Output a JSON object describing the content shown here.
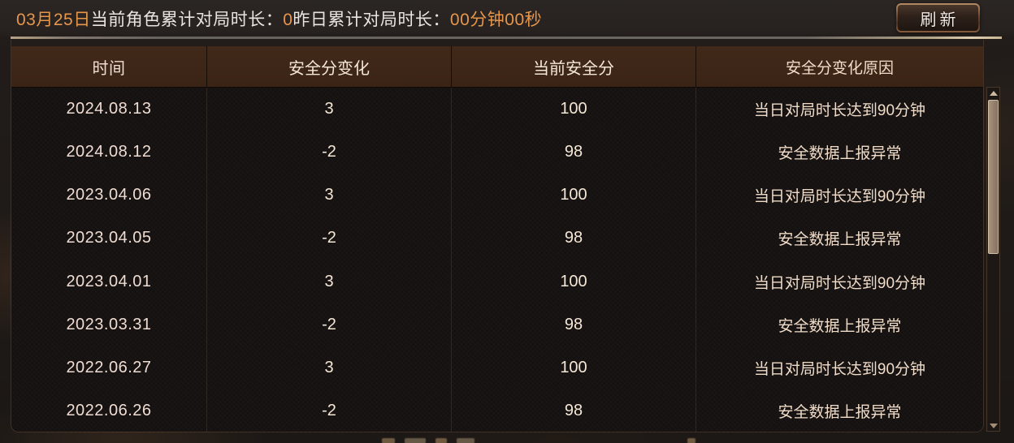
{
  "top_bar": {
    "date": "03月25日",
    "today_label": "当前角色累计对局时长：",
    "today_value": "0",
    "yesterday_label": "昨日累计对局时长：",
    "yesterday_value": "00分钟00秒",
    "refresh_label": "刷新"
  },
  "table": {
    "columns": [
      "时间",
      "安全分变化",
      "当前安全分",
      "安全分变化原因"
    ],
    "rows": [
      {
        "date": "2024.08.13",
        "change": "3",
        "score": "100",
        "reason": "当日对局时长达到90分钟"
      },
      {
        "date": "2024.08.12",
        "change": "-2",
        "score": "98",
        "reason": "安全数据上报异常"
      },
      {
        "date": "2023.04.06",
        "change": "3",
        "score": "100",
        "reason": "当日对局时长达到90分钟"
      },
      {
        "date": "2023.04.05",
        "change": "-2",
        "score": "98",
        "reason": "安全数据上报异常"
      },
      {
        "date": "2023.04.01",
        "change": "3",
        "score": "100",
        "reason": "当日对局时长达到90分钟"
      },
      {
        "date": "2023.03.31",
        "change": "-2",
        "score": "98",
        "reason": "安全数据上报异常"
      },
      {
        "date": "2022.06.27",
        "change": "3",
        "score": "100",
        "reason": "当日对局时长达到90分钟"
      },
      {
        "date": "2022.06.26",
        "change": "-2",
        "score": "98",
        "reason": "安全数据上报异常"
      }
    ]
  },
  "colors": {
    "accent_orange": "#e6964b",
    "header_bg": "#3c2517",
    "header_text": "#f2d7c2",
    "body_text": "#f1e0d2",
    "bronze_border": "#8a5c3c"
  }
}
